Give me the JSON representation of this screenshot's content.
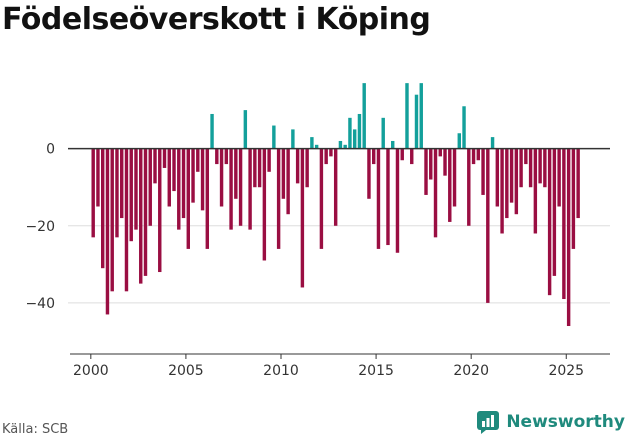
{
  "title": "Födelseöverskott i Köping",
  "source": "Källa: SCB",
  "brand": {
    "name": "Newsworthy",
    "icon": "newsworthy-logo-icon"
  },
  "colors": {
    "positive": "#13a09b",
    "negative": "#9a0e42",
    "axis": "#333333",
    "grid": "#dddddd",
    "brand": "#1f8a7d"
  },
  "chart_data": {
    "type": "bar",
    "title": "Födelseöverskott i Köping",
    "xlabel": "",
    "ylabel": "",
    "x_unit": "quarter",
    "x_start": 2000.0,
    "x_step": 0.25,
    "xlim": [
      1998.8,
      2027.3
    ],
    "ylim": [
      -53,
      23
    ],
    "xticks": [
      2000,
      2005,
      2010,
      2015,
      2020,
      2025
    ],
    "xtick_labels": [
      "2000",
      "2005",
      "2010",
      "2015",
      "2020",
      "2025"
    ],
    "yticks": [
      0,
      -20,
      -40
    ],
    "ytick_labels": [
      "0",
      "−20",
      "−40"
    ],
    "values": [
      -23,
      -15,
      -31,
      -43,
      -37,
      -23,
      -18,
      -37,
      -24,
      -21,
      -35,
      -33,
      -20,
      -9,
      -32,
      -5,
      -15,
      -11,
      -21,
      -18,
      -26,
      -14,
      -6,
      -16,
      -26,
      9,
      -4,
      -15,
      -4,
      -21,
      -13,
      -20,
      10,
      -21,
      -10,
      -10,
      -29,
      -6,
      6,
      -26,
      -13,
      -17,
      5,
      -9,
      -36,
      -10,
      3,
      1,
      -26,
      -4,
      -2,
      -20,
      2,
      1,
      8,
      5,
      9,
      17,
      -13,
      -4,
      -26,
      8,
      -25,
      2,
      -27,
      -3,
      17,
      -4,
      14,
      17,
      -12,
      -8,
      -23,
      -2,
      -7,
      -19,
      -15,
      4,
      11,
      -20,
      -4,
      -3,
      -12,
      -40,
      3,
      -15,
      -22,
      -18,
      -14,
      -17,
      -10,
      -4,
      -10,
      -22,
      -9,
      -10,
      -38,
      -33,
      -15,
      -39,
      -46,
      -26,
      -18
    ]
  }
}
